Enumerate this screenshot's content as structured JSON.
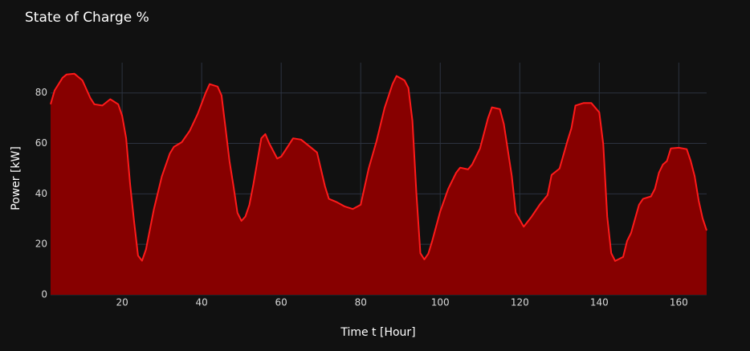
{
  "chart_data": {
    "type": "area",
    "title": "State of Charge %",
    "x_label": "Time t [Hour]",
    "y_label": "Power [kW]",
    "x": [
      2,
      3,
      5,
      6,
      8,
      10,
      12,
      13,
      15,
      17,
      19,
      20,
      21,
      22,
      23,
      24,
      25,
      26,
      28,
      30,
      32,
      33,
      35,
      37,
      39,
      41,
      42,
      44,
      45,
      46,
      47,
      48,
      49,
      50,
      51,
      52,
      53,
      54,
      55,
      56,
      57,
      59,
      60,
      62,
      63,
      65,
      67,
      69,
      71,
      72,
      74,
      76,
      78,
      80,
      82,
      84,
      86,
      88,
      89,
      91,
      92,
      93,
      94,
      95,
      96,
      97,
      98,
      100,
      102,
      104,
      105,
      107,
      108,
      110,
      112,
      113,
      115,
      116,
      118,
      119,
      121,
      123,
      125,
      127,
      128,
      130,
      132,
      133,
      134,
      136,
      138,
      140,
      141,
      142,
      143,
      144,
      146,
      147,
      148,
      150,
      151,
      153,
      154,
      155,
      156,
      157,
      158,
      160,
      162,
      163,
      164,
      165,
      166,
      167
    ],
    "series": [
      {
        "color": "#ff1a1a",
        "fill": "#870000",
        "values": [
          75.5,
          81,
          86,
          87.3,
          87.6,
          85,
          78,
          75.5,
          75,
          77.5,
          75.5,
          71,
          62,
          44,
          29,
          15.5,
          13.5,
          18,
          34,
          47,
          56,
          58.6,
          60.5,
          65,
          71.7,
          80,
          83.5,
          82.5,
          79,
          66,
          53,
          43,
          32.5,
          29.3,
          31,
          35.7,
          43.7,
          53,
          62,
          63.7,
          60,
          54,
          54.8,
          59.6,
          62,
          61.5,
          59,
          56.4,
          43,
          38,
          36.7,
          35,
          34,
          35.7,
          50,
          61,
          74,
          83.5,
          86.7,
          85,
          82,
          69,
          40.5,
          16.5,
          14,
          16.3,
          21.4,
          33,
          42,
          48.4,
          50.4,
          49.7,
          51.6,
          58,
          70,
          74.3,
          73.6,
          67.6,
          47,
          32.5,
          27,
          31,
          35.7,
          39.5,
          47.5,
          50,
          61,
          66,
          75,
          76,
          76,
          72.3,
          59.6,
          31,
          16.5,
          13.4,
          15,
          21.4,
          24.5,
          35.7,
          38,
          39,
          42,
          48.4,
          51.6,
          53,
          58,
          58.3,
          57.7,
          53,
          47,
          37.3,
          30.3,
          25.5
        ]
      }
    ],
    "xlim": [
      2,
      167
    ],
    "ylim": [
      0,
      92
    ],
    "xticks": [
      20,
      40,
      60,
      80,
      100,
      120,
      140,
      160
    ],
    "yticks": [
      0,
      20,
      40,
      60,
      80
    ],
    "grid": true
  }
}
